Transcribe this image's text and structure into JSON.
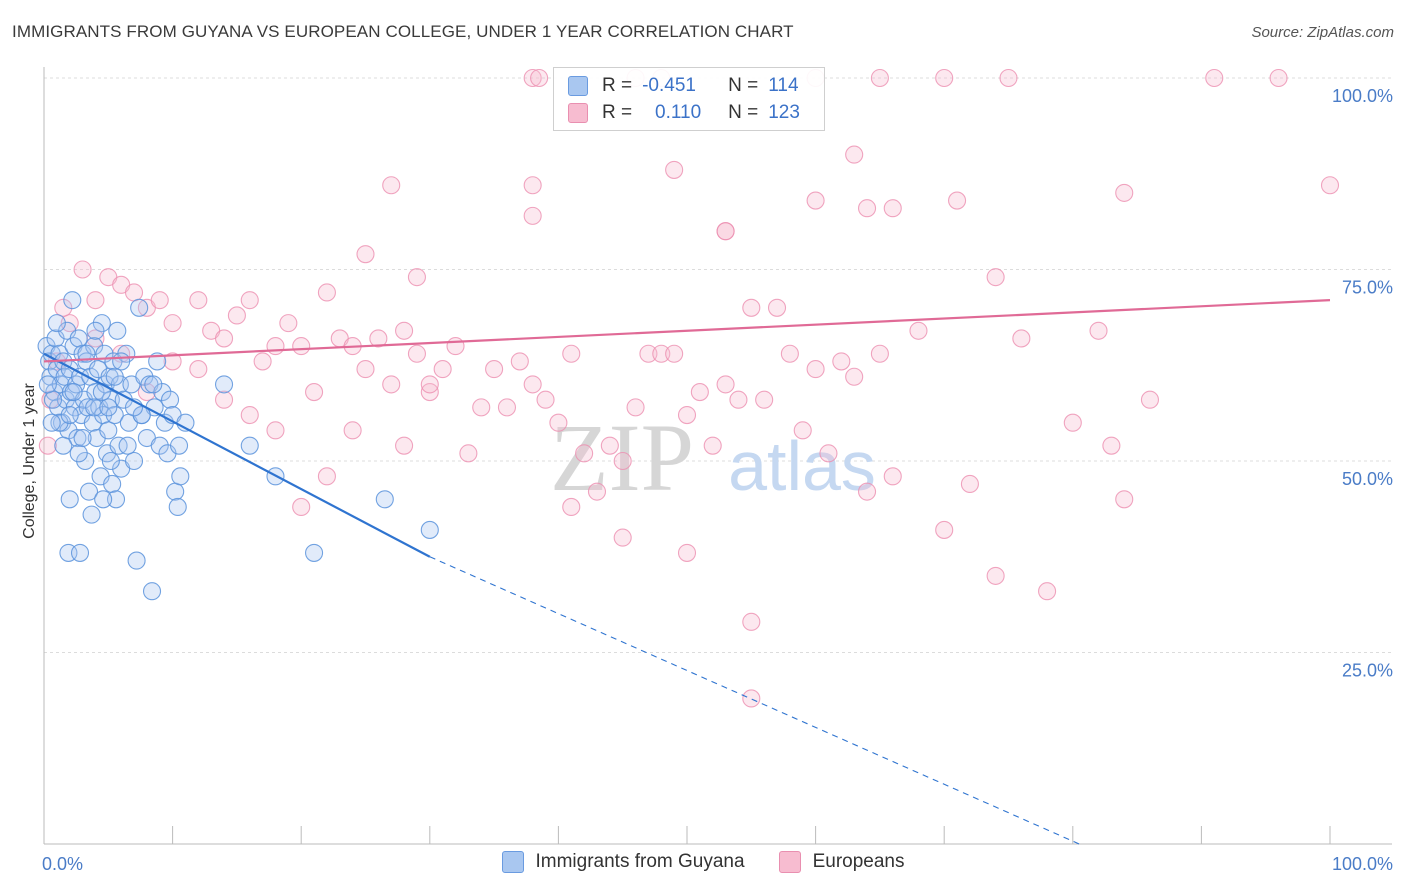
{
  "title": "IMMIGRANTS FROM GUYANA VS EUROPEAN COLLEGE, UNDER 1 YEAR CORRELATION CHART",
  "source": "Source: ZipAtlas.com",
  "watermark": {
    "zip": "ZIP",
    "atlas": "atlas"
  },
  "legend": {
    "r_label": "R =",
    "n_label": "N =",
    "series1": {
      "r": "-0.451",
      "n": "114"
    },
    "series2": {
      "r": "0.110",
      "n": "123"
    }
  },
  "bottom_legend": {
    "series1": "Immigrants from Guyana",
    "series2": "Europeans"
  },
  "chart_data": {
    "type": "scatter",
    "xlabel": "",
    "ylabel": "College, Under 1 year",
    "xlim": [
      0,
      100
    ],
    "ylim": [
      0,
      100
    ],
    "x_tick_labels": [
      "0.0%",
      "100.0%"
    ],
    "y_tick_labels": [
      "25.0%",
      "50.0%",
      "75.0%",
      "100.0%"
    ],
    "colors": {
      "series1": "#5b93dc",
      "series2": "#ec8fb0",
      "line1": "#2f74d0",
      "line2": "#e06a96"
    },
    "series": [
      {
        "name": "Immigrants from Guyana",
        "trend": {
          "x0": 0,
          "y0": 64,
          "x1": 30,
          "y1": 37.5,
          "dash_to_x": 80.5,
          "dash_to_y": 0
        },
        "points": [
          [
            0.2,
            65
          ],
          [
            0.4,
            63
          ],
          [
            0.5,
            61
          ],
          [
            0.6,
            64
          ],
          [
            0.8,
            59
          ],
          [
            0.9,
            66
          ],
          [
            1.0,
            62
          ],
          [
            1.1,
            57
          ],
          [
            1.2,
            64
          ],
          [
            1.3,
            60
          ],
          [
            1.4,
            55
          ],
          [
            1.5,
            63
          ],
          [
            1.6,
            61
          ],
          [
            1.7,
            58
          ],
          [
            1.8,
            67
          ],
          [
            1.9,
            54
          ],
          [
            2.0,
            62
          ],
          [
            2.1,
            59
          ],
          [
            2.2,
            71
          ],
          [
            2.3,
            65
          ],
          [
            2.4,
            57
          ],
          [
            2.5,
            60
          ],
          [
            2.6,
            53
          ],
          [
            2.7,
            66
          ],
          [
            2.8,
            61
          ],
          [
            2.9,
            56
          ],
          [
            3.0,
            64
          ],
          [
            3.1,
            58
          ],
          [
            3.2,
            50
          ],
          [
            3.3,
            63
          ],
          [
            3.4,
            57
          ],
          [
            3.6,
            61
          ],
          [
            3.7,
            43
          ],
          [
            3.8,
            55
          ],
          [
            3.9,
            65
          ],
          [
            4.0,
            59
          ],
          [
            4.1,
            53
          ],
          [
            4.2,
            62
          ],
          [
            4.3,
            57
          ],
          [
            4.4,
            48
          ],
          [
            4.5,
            68
          ],
          [
            4.6,
            56
          ],
          [
            4.7,
            64
          ],
          [
            4.8,
            60
          ],
          [
            4.9,
            51
          ],
          [
            5.0,
            54
          ],
          [
            5.1,
            61
          ],
          [
            5.2,
            58
          ],
          [
            5.3,
            47
          ],
          [
            5.4,
            63
          ],
          [
            5.5,
            56
          ],
          [
            5.6,
            45
          ],
          [
            5.7,
            67
          ],
          [
            5.8,
            52
          ],
          [
            5.9,
            60
          ],
          [
            6.0,
            49
          ],
          [
            6.2,
            58
          ],
          [
            6.4,
            64
          ],
          [
            6.6,
            55
          ],
          [
            6.8,
            60
          ],
          [
            7.0,
            50
          ],
          [
            7.2,
            37
          ],
          [
            7.4,
            70
          ],
          [
            7.6,
            56
          ],
          [
            7.8,
            61
          ],
          [
            8.0,
            53
          ],
          [
            8.2,
            60
          ],
          [
            8.4,
            33
          ],
          [
            8.6,
            57
          ],
          [
            8.8,
            63
          ],
          [
            9.0,
            52
          ],
          [
            9.2,
            59
          ],
          [
            9.4,
            55
          ],
          [
            9.6,
            51
          ],
          [
            9.8,
            58
          ],
          [
            10.0,
            56
          ],
          [
            10.2,
            46
          ],
          [
            10.4,
            44
          ],
          [
            10.6,
            48
          ],
          [
            11.0,
            55
          ],
          [
            1.9,
            38
          ],
          [
            2.8,
            38
          ],
          [
            2.0,
            45
          ],
          [
            3.5,
            46
          ],
          [
            4.6,
            45
          ],
          [
            0.7,
            58
          ],
          [
            1.5,
            52
          ],
          [
            2.7,
            51
          ],
          [
            3.9,
            57
          ],
          [
            5.2,
            50
          ],
          [
            6.5,
            52
          ],
          [
            7.6,
            56
          ],
          [
            8.5,
            60
          ],
          [
            10.5,
            52
          ],
          [
            14.0,
            60
          ],
          [
            16.0,
            52
          ],
          [
            18.0,
            48
          ],
          [
            21.0,
            38
          ],
          [
            26.5,
            45
          ],
          [
            30.0,
            41
          ],
          [
            1.2,
            55
          ],
          [
            2.3,
            59
          ],
          [
            3.0,
            53
          ],
          [
            4.0,
            67
          ],
          [
            5.0,
            57
          ],
          [
            6.0,
            63
          ],
          [
            0.3,
            60
          ],
          [
            0.6,
            55
          ],
          [
            1.0,
            68
          ],
          [
            2.0,
            56
          ],
          [
            3.3,
            64
          ],
          [
            4.5,
            59
          ],
          [
            5.5,
            61
          ],
          [
            7.0,
            57
          ]
        ]
      },
      {
        "name": "Europeans",
        "trend": {
          "x0": 0,
          "y0": 63,
          "x1": 100,
          "y1": 71
        },
        "points": [
          [
            38,
            100
          ],
          [
            38.5,
            100
          ],
          [
            46,
            100
          ],
          [
            48,
            100
          ],
          [
            60,
            100
          ],
          [
            65,
            100
          ],
          [
            70,
            100
          ],
          [
            75,
            100
          ],
          [
            91,
            100
          ],
          [
            96,
            100
          ],
          [
            49,
            88
          ],
          [
            38,
            86
          ],
          [
            27,
            86
          ],
          [
            100,
            86
          ],
          [
            60,
            84
          ],
          [
            64,
            83
          ],
          [
            53,
            80
          ],
          [
            38,
            82
          ],
          [
            66,
            83
          ],
          [
            84,
            85
          ],
          [
            71,
            84
          ],
          [
            63,
            90
          ],
          [
            25,
            77
          ],
          [
            29,
            74
          ],
          [
            74,
            74
          ],
          [
            53,
            80
          ],
          [
            3,
            75
          ],
          [
            5,
            74
          ],
          [
            6,
            73
          ],
          [
            7,
            72
          ],
          [
            4,
            71
          ],
          [
            8,
            70
          ],
          [
            9,
            71
          ],
          [
            10,
            68
          ],
          [
            12,
            71
          ],
          [
            13,
            67
          ],
          [
            14,
            66
          ],
          [
            15,
            69
          ],
          [
            16,
            71
          ],
          [
            17,
            63
          ],
          [
            18,
            65
          ],
          [
            19,
            68
          ],
          [
            20,
            65
          ],
          [
            21,
            59
          ],
          [
            22,
            72
          ],
          [
            23,
            66
          ],
          [
            24,
            65
          ],
          [
            25,
            62
          ],
          [
            26,
            66
          ],
          [
            27,
            60
          ],
          [
            28,
            67
          ],
          [
            29,
            64
          ],
          [
            30,
            59
          ],
          [
            31,
            62
          ],
          [
            32,
            65
          ],
          [
            33,
            51
          ],
          [
            34,
            57
          ],
          [
            35,
            62
          ],
          [
            36,
            57
          ],
          [
            37,
            63
          ],
          [
            38,
            60
          ],
          [
            39,
            58
          ],
          [
            40,
            55
          ],
          [
            41,
            64
          ],
          [
            42,
            51
          ],
          [
            43,
            46
          ],
          [
            44,
            52
          ],
          [
            45,
            50
          ],
          [
            46,
            57
          ],
          [
            47,
            64
          ],
          [
            48,
            64
          ],
          [
            49,
            64
          ],
          [
            50,
            56
          ],
          [
            51,
            59
          ],
          [
            52,
            52
          ],
          [
            53,
            60
          ],
          [
            54,
            58
          ],
          [
            55,
            70
          ],
          [
            56,
            58
          ],
          [
            57,
            70
          ],
          [
            58,
            64
          ],
          [
            59,
            54
          ],
          [
            60,
            62
          ],
          [
            61,
            51
          ],
          [
            62,
            63
          ],
          [
            63,
            61
          ],
          [
            64,
            46
          ],
          [
            65,
            64
          ],
          [
            66,
            48
          ],
          [
            68,
            67
          ],
          [
            70,
            41
          ],
          [
            72,
            47
          ],
          [
            74,
            35
          ],
          [
            76,
            66
          ],
          [
            78,
            33
          ],
          [
            80,
            55
          ],
          [
            82,
            67
          ],
          [
            83,
            52
          ],
          [
            84,
            45
          ],
          [
            86,
            58
          ],
          [
            55,
            19
          ],
          [
            55,
            29
          ],
          [
            41,
            44
          ],
          [
            45,
            40
          ],
          [
            50,
            38
          ],
          [
            30,
            60
          ],
          [
            28,
            52
          ],
          [
            24,
            54
          ],
          [
            22,
            48
          ],
          [
            20,
            44
          ],
          [
            18,
            54
          ],
          [
            16,
            56
          ],
          [
            14,
            58
          ],
          [
            12,
            62
          ],
          [
            10,
            63
          ],
          [
            8,
            59
          ],
          [
            6,
            64
          ],
          [
            4,
            66
          ],
          [
            2,
            68
          ],
          [
            1,
            63
          ],
          [
            0.5,
            58
          ],
          [
            0.3,
            52
          ],
          [
            1.5,
            70
          ]
        ]
      }
    ]
  }
}
